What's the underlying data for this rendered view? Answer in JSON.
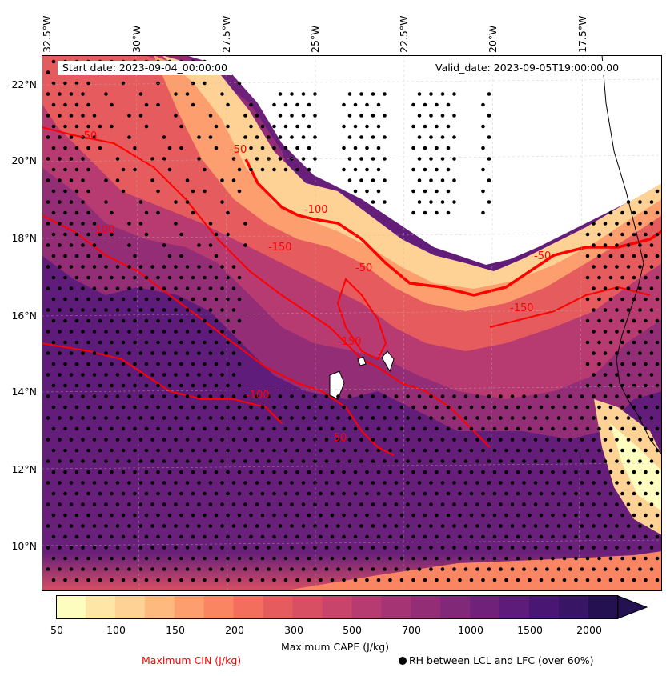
{
  "map": {
    "start_date": "Start date: 2023-09-04_00:00:00",
    "valid_date": "Valid_date: 2023-09-05T19:00:00.00",
    "longitude_labels": [
      "32.5°W",
      "30°W",
      "27.5°W",
      "25°W",
      "22.5°W",
      "20°W",
      "17.5°W"
    ],
    "latitude_labels": [
      "22°N",
      "20°N",
      "18°N",
      "16°N",
      "14°N",
      "12°N",
      "10°N"
    ],
    "cin_contour_labels": [
      "-50",
      "-100",
      "-100",
      "-150",
      "-50",
      "-50",
      "-150",
      "-100",
      "-50",
      "-50",
      "-150"
    ],
    "cin_contour_color": "#ff0000",
    "projection_grid": "dashed",
    "coastline_color": "#000000",
    "stipple": "RH between LCL and LFC (over 60%)"
  },
  "colorbar": {
    "title": "Maximum CAPE (J/kg)",
    "ticks": [
      "50",
      "100",
      "150",
      "200",
      "300",
      "500",
      "700",
      "1000",
      "1500",
      "2000"
    ],
    "colormap": "magma_r",
    "extend": "max",
    "colors": [
      "#fcfdbf",
      "#fee6a6",
      "#fed194",
      "#feb97f",
      "#fd9e6e",
      "#fa8562",
      "#f36e5c",
      "#e55b5e",
      "#d84f63",
      "#c8446a",
      "#b73b70",
      "#a43474",
      "#922d76",
      "#812978",
      "#70227b",
      "#5d1b7a",
      "#4a1673",
      "#381565",
      "#231151"
    ]
  },
  "legend": {
    "cin_label": "Maximum CIN (J/kg)",
    "rh_label": "RH between LCL and LFC (over 60%)"
  }
}
